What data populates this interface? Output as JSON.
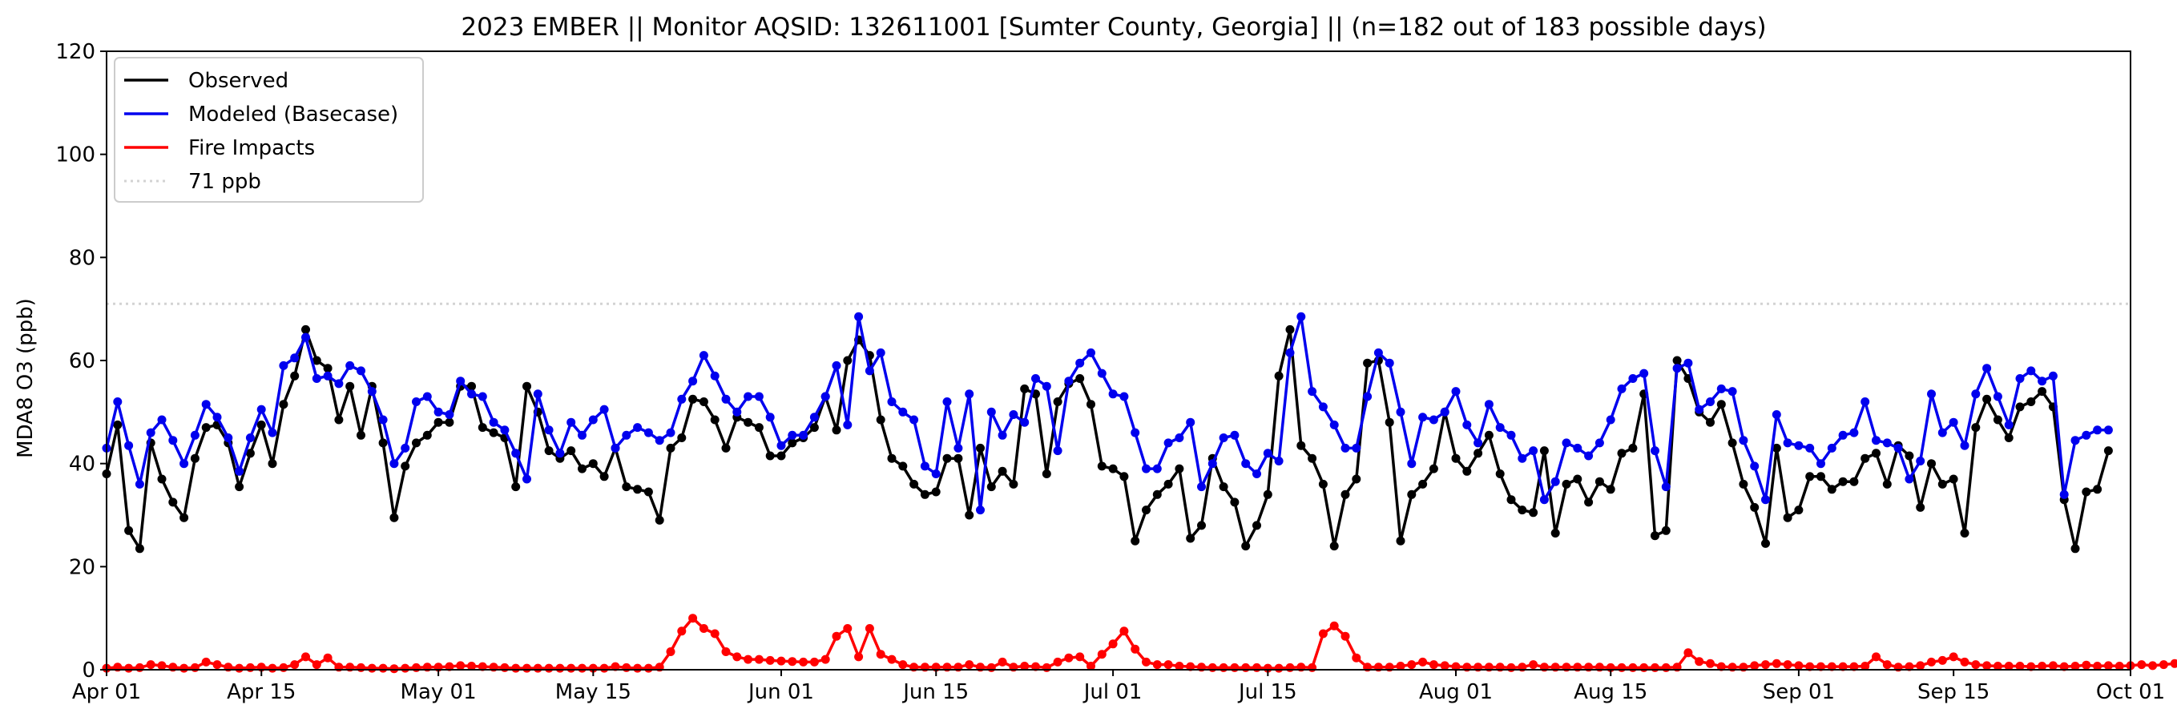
{
  "chart_data": {
    "type": "line",
    "title": "2023 EMBER || Monitor AQSID: 132611001 [Sumter County, Georgia] || (n=182 out of 183 possible days)",
    "xlabel": "",
    "ylabel": "MDA8 O3 (ppb)",
    "ylim": [
      0,
      120
    ],
    "yticks": [
      0,
      20,
      40,
      60,
      80,
      100,
      120
    ],
    "xlim": [
      "2023-04-01",
      "2023-10-01"
    ],
    "xtick_labels": [
      "Apr 01",
      "Apr 15",
      "May 01",
      "May 15",
      "Jun 01",
      "Jun 15",
      "Jul 01",
      "Jul 15",
      "Aug 01",
      "Aug 15",
      "Sep 01",
      "Sep 15",
      "Oct 01"
    ],
    "xtick_dates": [
      "2023-04-01",
      "2023-04-15",
      "2023-05-01",
      "2023-05-15",
      "2023-06-01",
      "2023-06-15",
      "2023-07-01",
      "2023-07-15",
      "2023-08-01",
      "2023-08-15",
      "2023-09-01",
      "2023-09-15",
      "2023-10-01"
    ],
    "grid": false,
    "legend_position": "upper-left",
    "series": [
      {
        "name": "Observed",
        "color": "#000000",
        "start_date": "2023-04-01",
        "values": [
          38,
          47.5,
          27,
          23.5,
          44,
          37,
          32.5,
          29.5,
          41,
          47,
          47.5,
          44,
          35.5,
          42,
          47.5,
          40,
          51.5,
          57,
          66,
          60,
          58.5,
          48.5,
          55,
          45.5,
          55,
          44,
          29.5,
          39.5,
          44,
          45.5,
          48,
          48,
          55,
          55,
          47,
          46,
          45,
          35.5,
          55,
          50,
          42.5,
          41,
          42.5,
          39,
          40,
          37.5,
          43,
          35.5,
          35,
          34.5,
          29,
          43,
          45,
          52.5,
          52,
          48.5,
          43,
          49,
          48,
          47,
          41.5,
          41.5,
          44,
          45,
          47,
          53,
          46.5,
          60,
          64,
          61,
          48.5,
          41,
          39.5,
          36,
          34,
          34.5,
          41,
          41,
          30,
          43,
          35.5,
          38.5,
          36,
          54.5,
          53.5,
          38,
          52,
          55.5,
          56.5,
          51.5,
          39.5,
          39,
          37.5,
          25,
          31,
          34,
          36,
          39,
          25.5,
          28,
          41,
          35.5,
          32.5,
          24,
          28,
          34,
          57,
          66,
          43.5,
          41,
          36,
          24,
          34,
          37,
          59.5,
          60,
          48,
          25,
          34,
          36,
          39,
          50,
          41,
          38.5,
          42,
          45.5,
          38,
          33,
          31,
          30.5,
          42.5,
          26.5,
          36,
          37,
          32.5,
          36.5,
          35,
          42,
          43,
          53.5,
          26,
          27,
          60,
          56.5,
          50,
          48,
          51.5,
          44,
          36,
          31.5,
          24.5,
          43,
          29.5,
          31,
          37.5,
          37.5,
          35,
          36.5,
          36.5,
          41,
          42,
          36,
          43.5,
          41.5,
          31.5,
          40,
          36,
          37,
          26.5,
          47,
          52.5,
          48.5,
          45,
          51,
          52,
          54,
          51,
          33,
          23.5,
          34.5,
          35,
          42.5
        ]
      },
      {
        "name": "Modeled (Basecase)",
        "color": "#0000ee",
        "start_date": "2023-04-01",
        "values": [
          43,
          52,
          43.5,
          36,
          46,
          48.5,
          44.5,
          40,
          45.5,
          51.5,
          49,
          45,
          38.5,
          45,
          50.5,
          46,
          59,
          60.5,
          64.5,
          56.5,
          57,
          55.5,
          59,
          58,
          54,
          48.5,
          40,
          43,
          52,
          53,
          50,
          49.5,
          56,
          53.5,
          53,
          48,
          46.5,
          42,
          37,
          53.5,
          46.5,
          42,
          48,
          45.5,
          48.5,
          50.5,
          43,
          45.5,
          47,
          46,
          44.5,
          46,
          52.5,
          56,
          61,
          57,
          52.5,
          50,
          53,
          53,
          49,
          43.5,
          45.5,
          45.5,
          49,
          53,
          59,
          47.5,
          68.5,
          58,
          61.5,
          52,
          50,
          48.5,
          39.5,
          38,
          52,
          43,
          53.5,
          31,
          50,
          45.5,
          49.5,
          48,
          56.5,
          55,
          42.5,
          56,
          59.5,
          61.5,
          57.5,
          53.5,
          53,
          46,
          39,
          39,
          44,
          45,
          48,
          35.5,
          40,
          45,
          45.5,
          40,
          38,
          42,
          40.5,
          61.5,
          68.5,
          54,
          51,
          47.5,
          43,
          43,
          53,
          61.5,
          59.5,
          50,
          40,
          49,
          48.5,
          50,
          54,
          47.5,
          44,
          51.5,
          47,
          45.5,
          41,
          42.5,
          33,
          36.5,
          44,
          43,
          41.5,
          44,
          48.5,
          54.5,
          56.5,
          57.5,
          42.5,
          35.5,
          58.5,
          59.5,
          50.5,
          52,
          54.5,
          54,
          44.5,
          39.5,
          33,
          49.5,
          44,
          43.5,
          43,
          40,
          43,
          45.5,
          46,
          52,
          44.5,
          44,
          43,
          37,
          40.5,
          53.5,
          46,
          48,
          43.5,
          53.5,
          58.5,
          53,
          47.5,
          56.5,
          58,
          56,
          57,
          34,
          44.5,
          45.5,
          46.5,
          46.5
        ]
      },
      {
        "name": "Fire Impacts",
        "color": "#ff0000",
        "start_date": "2023-04-01",
        "values": [
          0.3,
          0.5,
          0.3,
          0.4,
          1,
          0.8,
          0.5,
          0.3,
          0.4,
          1.5,
          1,
          0.5,
          0.3,
          0.4,
          0.5,
          0.3,
          0.4,
          1,
          2.5,
          1,
          2.3,
          0.5,
          0.5,
          0.4,
          0.3,
          0.3,
          0.2,
          0.3,
          0.4,
          0.5,
          0.5,
          0.6,
          0.8,
          0.7,
          0.6,
          0.5,
          0.4,
          0.3,
          0.3,
          0.3,
          0.3,
          0.3,
          0.3,
          0.3,
          0.3,
          0.3,
          0.6,
          0.4,
          0.3,
          0.3,
          0.5,
          3.5,
          7.5,
          10,
          8,
          7,
          3.5,
          2.5,
          2,
          2,
          1.8,
          1.7,
          1.6,
          1.5,
          1.5,
          2,
          6.5,
          8,
          2.5,
          8,
          3,
          2,
          1,
          0.5,
          0.5,
          0.5,
          0.5,
          0.5,
          1,
          0.5,
          0.4,
          1.5,
          0.5,
          0.7,
          0.6,
          0.4,
          1.5,
          2.3,
          2.5,
          0.7,
          3,
          5,
          7.5,
          4,
          1.5,
          1,
          1,
          0.7,
          0.6,
          0.5,
          0.4,
          0.4,
          0.4,
          0.4,
          0.4,
          0.3,
          0.3,
          0.4,
          0.5,
          0.4,
          7,
          8.5,
          6.5,
          2.3,
          0.5,
          0.5,
          0.5,
          0.7,
          1,
          1.5,
          1,
          0.8,
          0.6,
          0.5,
          0.5,
          0.5,
          0.5,
          0.4,
          0.5,
          1,
          0.5,
          0.5,
          0.5,
          0.5,
          0.5,
          0.5,
          0.4,
          0.4,
          0.4,
          0.4,
          0.4,
          0.4,
          0.5,
          3.3,
          1.6,
          1.2,
          0.6,
          0.5,
          0.5,
          0.8,
          1,
          1.2,
          1,
          0.8,
          0.6,
          0.6,
          0.6,
          0.6,
          0.6,
          0.7,
          2.5,
          1,
          0.5,
          0.6,
          0.8,
          1.5,
          1.8,
          2.5,
          1.5,
          1,
          0.8,
          0.7,
          0.7,
          0.7,
          0.6,
          0.7,
          0.8,
          0.6,
          0.7,
          0.9,
          0.7,
          0.8,
          0.7,
          0.8,
          1,
          0.8,
          1,
          1.2,
          1,
          1
        ]
      },
      {
        "name": "71 ppb",
        "color": "#d3d3d3",
        "style": "dotted",
        "constant": 71
      }
    ]
  }
}
